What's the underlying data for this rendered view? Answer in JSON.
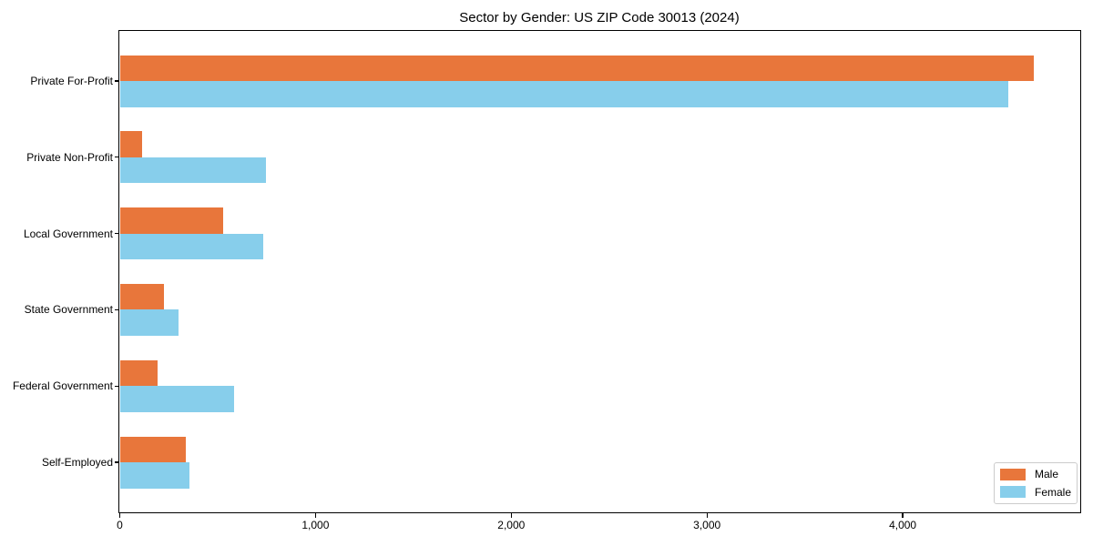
{
  "chart_data": {
    "type": "bar",
    "orientation": "horizontal",
    "title": "Sector by Gender: US ZIP Code 30013 (2024)",
    "categories": [
      "Private For-Profit",
      "Private Non-Profit",
      "Local Government",
      "State Government",
      "Federal Government",
      "Self-Employed"
    ],
    "series": [
      {
        "name": "Male",
        "color": "#e8763b",
        "values": [
          4670,
          116,
          529,
          228,
          195,
          336
        ]
      },
      {
        "name": "Female",
        "color": "#87ceeb",
        "values": [
          4540,
          745,
          731,
          302,
          586,
          358
        ]
      }
    ],
    "xlabel": "",
    "ylabel": "",
    "xlim": [
      0,
      4900
    ],
    "x_ticks": [
      0,
      1000,
      2000,
      3000,
      4000
    ],
    "x_tick_labels": [
      "0",
      "1,000",
      "2,000",
      "3,000",
      "4,000"
    ],
    "grid": false,
    "legend_position": "lower right",
    "background_color": "#ffffff",
    "axis_color": "#000000"
  }
}
